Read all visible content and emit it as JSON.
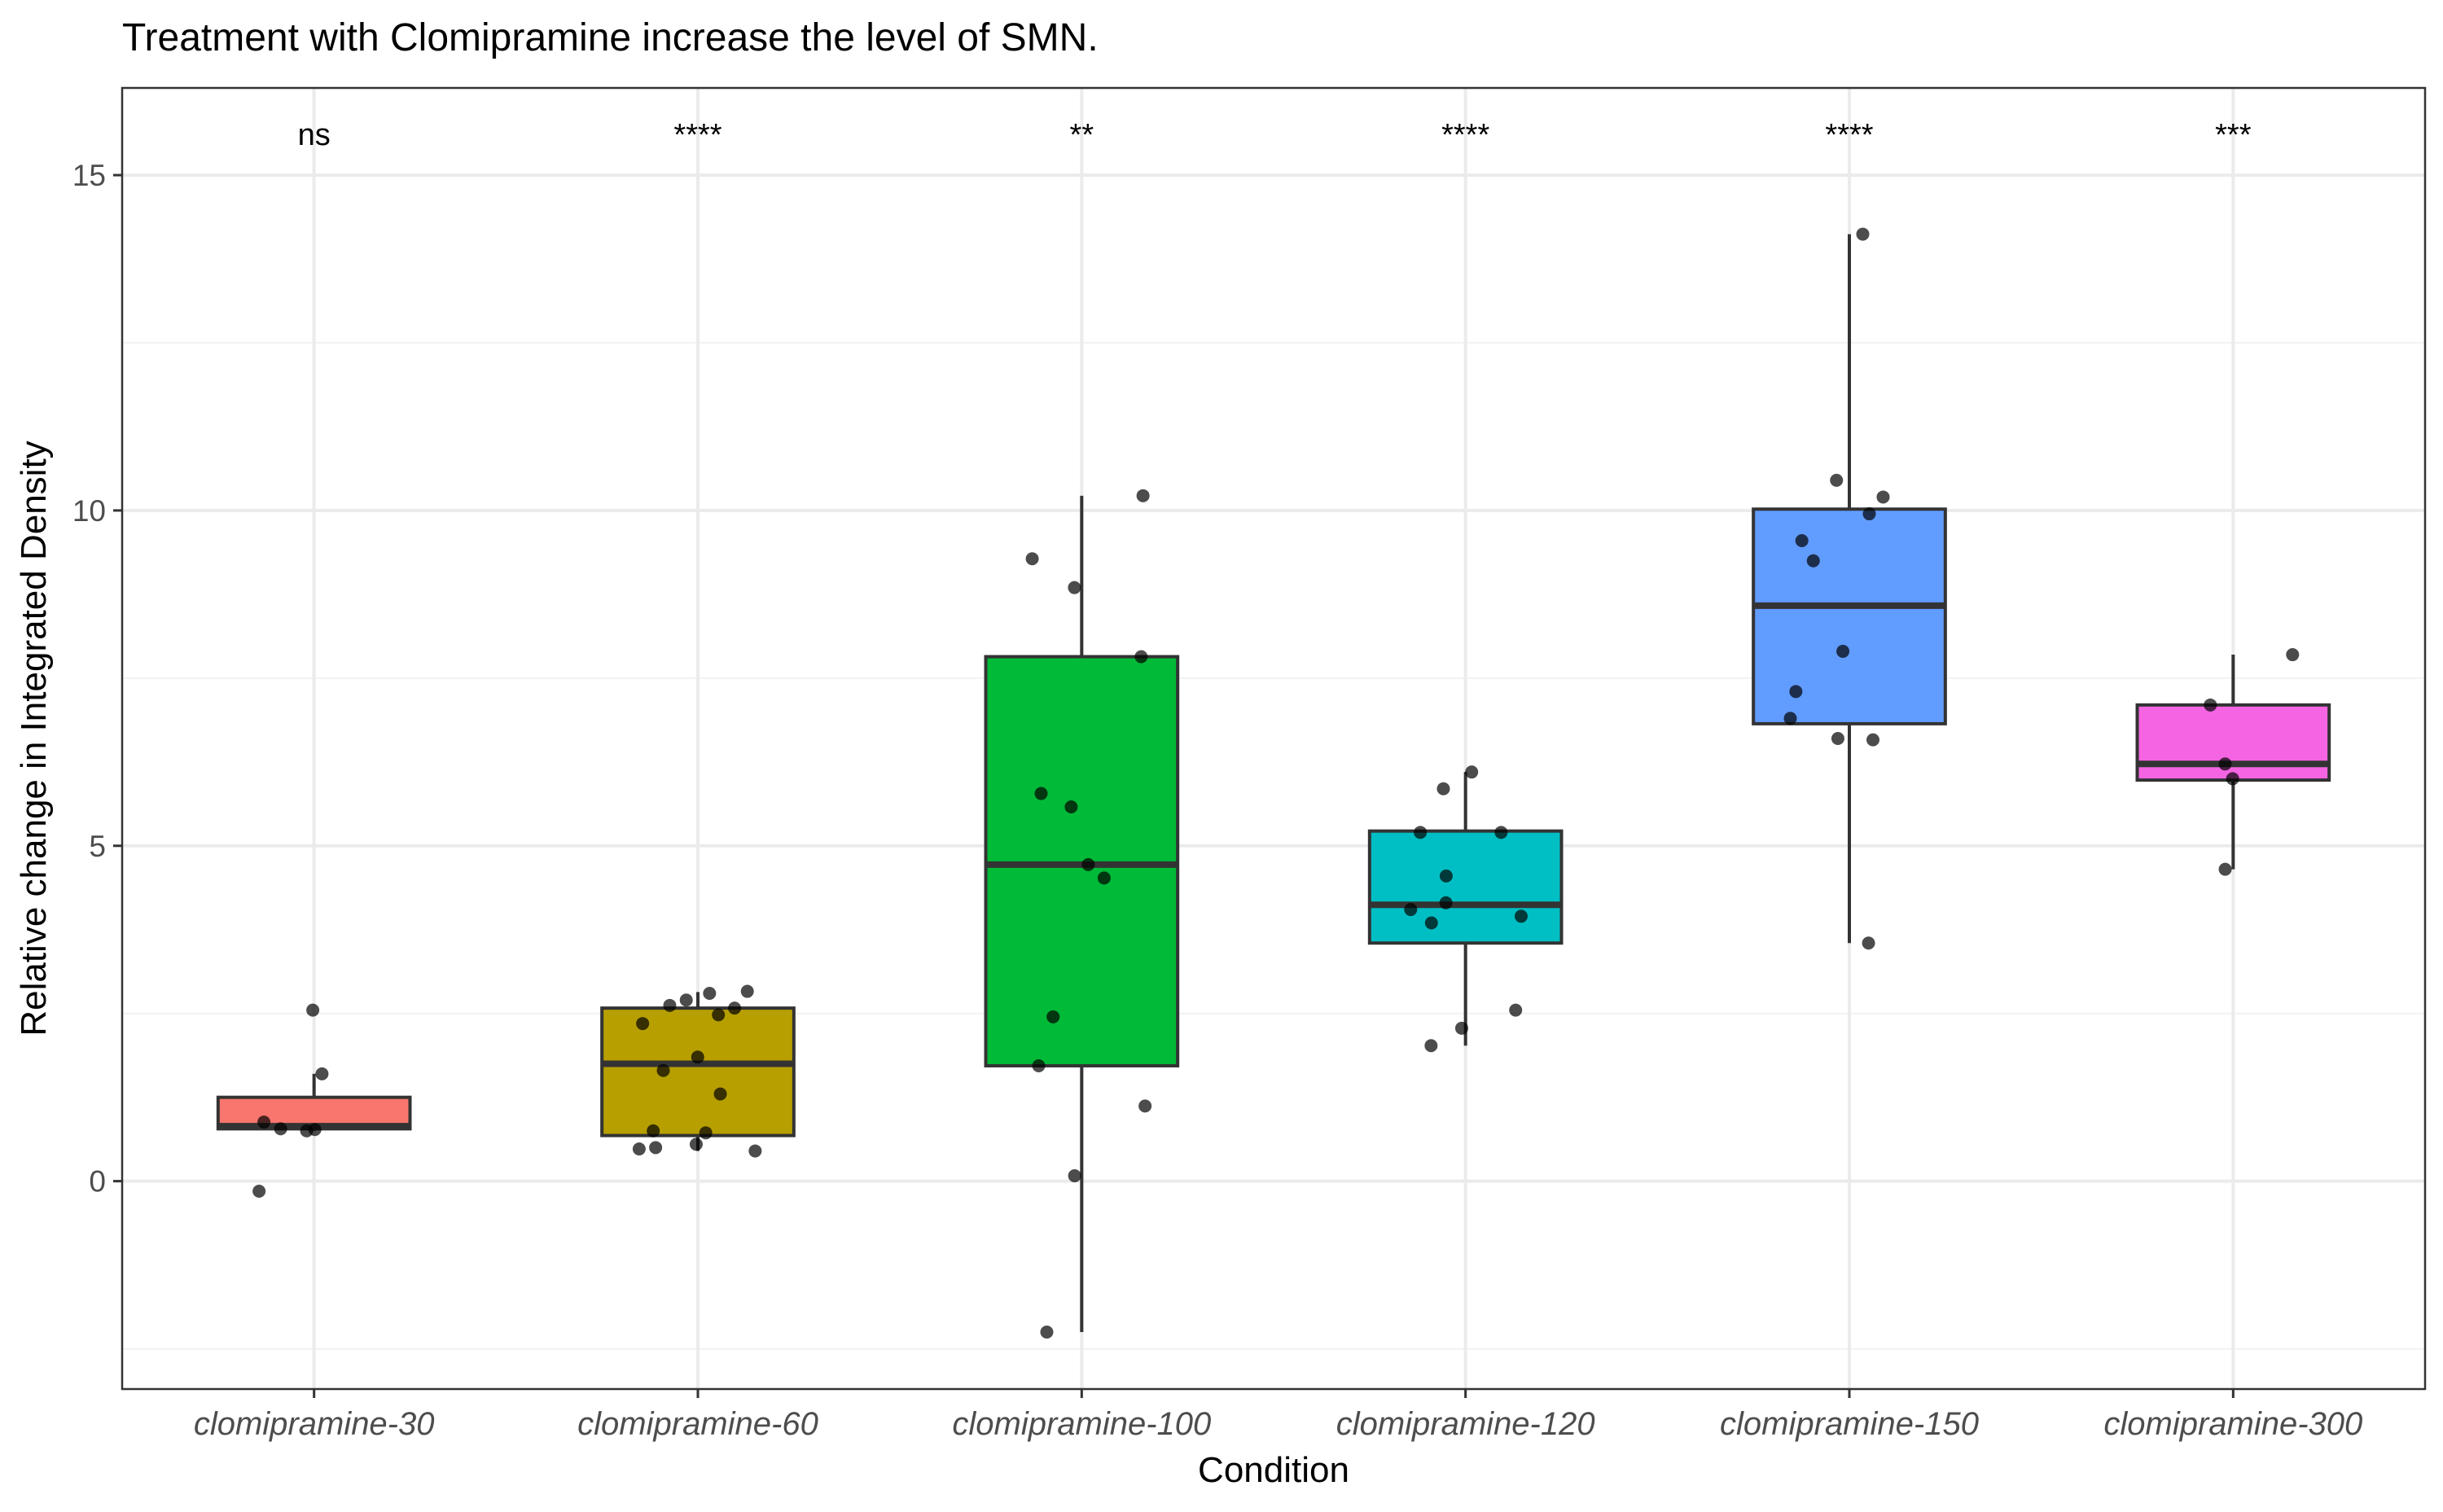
{
  "chart_data": {
    "type": "box",
    "title": "Treatment with Clomipramine increase the level of SMN.",
    "xlabel": "Condition",
    "ylabel": "Relative change in Integrated Density",
    "ylim": [
      -3.1,
      16.3
    ],
    "yticks": [
      0,
      5,
      10,
      15
    ],
    "grid": true,
    "legend": "none",
    "categories": [
      "clomipramine-30",
      "clomipramine-60",
      "clomipramine-100",
      "clomipramine-120",
      "clomipramine-150",
      "clomipramine-300"
    ],
    "colors": [
      "#F8766D",
      "#B79F00",
      "#00BA38",
      "#00BFC4",
      "#619CFF",
      "#F564E3"
    ],
    "significance": [
      "ns",
      "****",
      "**",
      "****",
      "****",
      "***"
    ],
    "boxes": [
      {
        "q1": 0.78,
        "median": 0.82,
        "q3": 1.25,
        "whisker_low": 0.75,
        "whisker_high": 1.6
      },
      {
        "q1": 0.68,
        "median": 1.75,
        "q3": 2.58,
        "whisker_low": 0.45,
        "whisker_high": 2.82
      },
      {
        "q1": 1.72,
        "median": 4.72,
        "q3": 7.82,
        "whisker_low": -2.25,
        "whisker_high": 10.22
      },
      {
        "q1": 3.55,
        "median": 4.12,
        "q3": 5.22,
        "whisker_low": 2.02,
        "whisker_high": 6.1
      },
      {
        "q1": 6.82,
        "median": 8.58,
        "q3": 10.02,
        "whisker_low": 3.55,
        "whisker_high": 14.12
      },
      {
        "q1": 5.98,
        "median": 6.22,
        "q3": 7.1,
        "whisker_low": 4.65,
        "whisker_high": 7.85
      }
    ],
    "points": [
      [
        2.55,
        1.6,
        0.88,
        0.78,
        0.75,
        0.77,
        -0.15
      ],
      [
        2.83,
        2.8,
        2.7,
        2.62,
        2.58,
        2.48,
        2.35,
        1.85,
        1.65,
        1.3,
        0.75,
        0.72,
        0.55,
        0.5,
        0.48,
        0.45
      ],
      [
        10.22,
        9.28,
        8.85,
        7.82,
        5.78,
        5.58,
        4.72,
        4.52,
        2.45,
        1.72,
        1.12,
        0.08,
        -2.25
      ],
      [
        6.1,
        5.85,
        5.2,
        5.2,
        4.55,
        4.15,
        4.05,
        3.95,
        3.85,
        2.55,
        2.28,
        2.02
      ],
      [
        14.12,
        10.45,
        10.2,
        9.95,
        9.55,
        9.25,
        7.9,
        7.3,
        6.9,
        6.6,
        6.58,
        3.55
      ],
      [
        7.85,
        7.1,
        6.22,
        6.0,
        4.65
      ]
    ]
  }
}
